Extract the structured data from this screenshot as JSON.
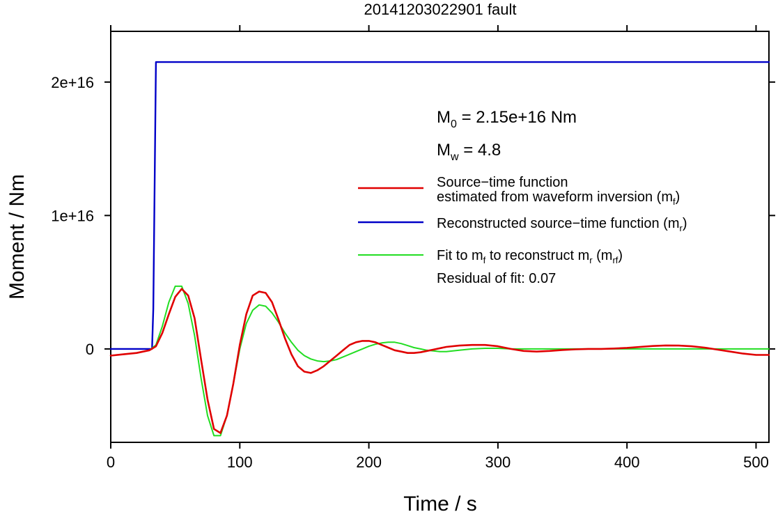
{
  "chart_data": {
    "type": "line",
    "title": "20141203022901 fault",
    "xlabel": "Time / s",
    "ylabel": "Moment / Nm",
    "xlim": [
      0,
      510
    ],
    "ylim": [
      -7000000000000000.0,
      2.38e+16
    ],
    "x_ticks": [
      0,
      100,
      200,
      300,
      400,
      500
    ],
    "x_tick_labels": [
      "0",
      "100",
      "200",
      "300",
      "400",
      "500"
    ],
    "y_ticks": [
      0,
      1e+16,
      2e+16
    ],
    "y_tick_labels": [
      "0",
      "1e+16",
      "2e+16"
    ],
    "grid": false,
    "legend_position": "right",
    "annotations": {
      "m0": {
        "main": "M",
        "sub": "0",
        "rest": " = 2.15e+16 Nm"
      },
      "mw": {
        "main": "M",
        "sub": "w",
        "rest": " = 4.8"
      },
      "residual": "Residual of fit: 0.07"
    },
    "legend": {
      "red": {
        "line1": "Source−time function",
        "line2": "estimated from waveform inversion (m",
        "sub": "f",
        "close": ")"
      },
      "blue": {
        "text": "Reconstructed source−time function (m",
        "sub": "r",
        "close": ")"
      },
      "green": {
        "t1": "Fit to m",
        "s1": "f",
        "t2": " to reconstruct m",
        "s2": "r",
        "t3": " (m",
        "s3": "rf",
        "t4": ")"
      }
    },
    "series": [
      {
        "name": "Source−time function estimated from waveform inversion (mf)",
        "color": "#e00000",
        "x": [
          0,
          10,
          20,
          30,
          35,
          40,
          45,
          50,
          55,
          60,
          65,
          70,
          75,
          80,
          85,
          90,
          95,
          100,
          105,
          110,
          115,
          120,
          125,
          130,
          135,
          140,
          145,
          150,
          155,
          160,
          165,
          170,
          175,
          180,
          185,
          190,
          195,
          200,
          205,
          210,
          215,
          220,
          225,
          230,
          235,
          240,
          245,
          250,
          260,
          270,
          280,
          290,
          300,
          310,
          320,
          330,
          340,
          350,
          360,
          370,
          380,
          390,
          400,
          410,
          420,
          430,
          440,
          450,
          460,
          470,
          480,
          490,
          500,
          510
        ],
        "values": [
          -500000000000000.0,
          -400000000000000.0,
          -300000000000000.0,
          -100000000000000.0,
          200000000000000.0,
          1200000000000000.0,
          2600000000000000.0,
          3900000000000000.0,
          4500000000000000.0,
          4000000000000000.0,
          2300000000000000.0,
          -800000000000000.0,
          -3800000000000000.0,
          -6000000000000000.0,
          -6300000000000000.0,
          -5000000000000000.0,
          -2600000000000000.0,
          300000000000000.0,
          2600000000000000.0,
          4000000000000000.0,
          4300000000000000.0,
          4200000000000000.0,
          3500000000000000.0,
          2200000000000000.0,
          800000000000000.0,
          -400000000000000.0,
          -1300000000000000.0,
          -1700000000000000.0,
          -1800000000000000.0,
          -1600000000000000.0,
          -1300000000000000.0,
          -900000000000000.0,
          -500000000000000.0,
          -100000000000000.0,
          300000000000000.0,
          500000000000000.0,
          600000000000000.0,
          600000000000000.0,
          500000000000000.0,
          300000000000000.0,
          100000000000000.0,
          -100000000000000.0,
          -200000000000000.0,
          -300000000000000.0,
          -300000000000000.0,
          -250000000000000.0,
          -150000000000000.0,
          -50000000000000.0,
          150000000000000.0,
          250000000000000.0,
          300000000000000.0,
          300000000000000.0,
          200000000000000.0,
          0,
          -150000000000000.0,
          -200000000000000.0,
          -150000000000000.0,
          -80000000000000.0,
          -30000000000000.0,
          0,
          0,
          30000000000000.0,
          80000000000000.0,
          150000000000000.0,
          220000000000000.0,
          260000000000000.0,
          250000000000000.0,
          200000000000000.0,
          100000000000000.0,
          -50000000000000.0,
          -200000000000000.0,
          -350000000000000.0,
          -450000000000000.0,
          -450000000000000.0
        ]
      },
      {
        "name": "Reconstructed source−time function (mr)",
        "color": "#0000c8",
        "x": [
          0,
          32,
          33,
          35,
          510
        ],
        "values": [
          0,
          0,
          3000000000000000.0,
          2.15e+16,
          2.15e+16
        ]
      },
      {
        "name": "Fit to mf to reconstruct mr (mrf)",
        "color": "#22dd22",
        "x": [
          30,
          35,
          40,
          45,
          50,
          55,
          60,
          65,
          70,
          75,
          80,
          85,
          90,
          95,
          100,
          105,
          110,
          115,
          120,
          125,
          130,
          135,
          140,
          145,
          150,
          155,
          160,
          165,
          170,
          175,
          180,
          185,
          190,
          195,
          200,
          205,
          210,
          215,
          220,
          225,
          230,
          235,
          240,
          245,
          250,
          255,
          260,
          265,
          270,
          280,
          290,
          300,
          310,
          320,
          340,
          360,
          380,
          400,
          420,
          440,
          460,
          480,
          500,
          510
        ],
        "values": [
          -100000000000000.0,
          300000000000000.0,
          1700000000000000.0,
          3500000000000000.0,
          4700000000000000.0,
          4700000000000000.0,
          3400000000000000.0,
          1000000000000000.0,
          -2200000000000000.0,
          -5000000000000000.0,
          -6500000000000000.0,
          -6500000000000000.0,
          -5000000000000000.0,
          -2600000000000000.0,
          0,
          1900000000000000.0,
          2900000000000000.0,
          3300000000000000.0,
          3200000000000000.0,
          2700000000000000.0,
          2000000000000000.0,
          1200000000000000.0,
          500000000000000.0,
          -100000000000000.0,
          -500000000000000.0,
          -750000000000000.0,
          -900000000000000.0,
          -950000000000000.0,
          -900000000000000.0,
          -800000000000000.0,
          -600000000000000.0,
          -400000000000000.0,
          -200000000000000.0,
          0,
          200000000000000.0,
          350000000000000.0,
          450000000000000.0,
          500000000000000.0,
          500000000000000.0,
          400000000000000.0,
          250000000000000.0,
          100000000000000.0,
          0,
          -100000000000000.0,
          -150000000000000.0,
          -200000000000000.0,
          -200000000000000.0,
          -150000000000000.0,
          -100000000000000.0,
          0,
          50000000000000.0,
          50000000000000.0,
          0,
          0,
          0,
          0,
          0,
          0,
          0,
          0,
          0,
          0,
          0,
          0
        ]
      }
    ]
  }
}
